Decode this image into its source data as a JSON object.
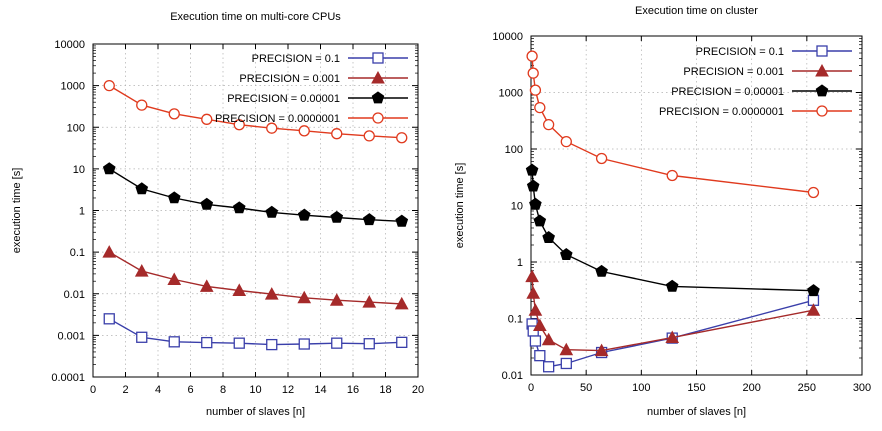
{
  "chart_data": [
    {
      "type": "line",
      "title": "Execution time on multi-core CPUs",
      "xlabel": "number of slaves [n]",
      "ylabel": "execution time [s]",
      "xlim": [
        0,
        20
      ],
      "ylim": [
        0.0001,
        10000
      ],
      "yscale": "log",
      "xticks": [
        "0",
        "2",
        "4",
        "6",
        "8",
        "10",
        "12",
        "14",
        "16",
        "18",
        "20"
      ],
      "yticks": [
        "0.0001",
        "0.001",
        "0.01",
        "0.1",
        "1",
        "10",
        "100",
        "1000",
        "10000"
      ],
      "grid": true,
      "legend_position": "top-right",
      "series": [
        {
          "name": "PRECISION = 0.1",
          "color": "#3a3faa",
          "marker": "open-square",
          "x": [
            1,
            3,
            5,
            7,
            9,
            11,
            13,
            15,
            17,
            19
          ],
          "y": [
            0.0025,
            0.0009,
            0.0007,
            0.00067,
            0.00065,
            0.0006,
            0.00062,
            0.00065,
            0.00063,
            0.00068
          ]
        },
        {
          "name": "PRECISION = 0.001",
          "color": "#a52a2a",
          "marker": "filled-triangle",
          "x": [
            1,
            3,
            5,
            7,
            9,
            11,
            13,
            15,
            17,
            19
          ],
          "y": [
            0.1,
            0.035,
            0.022,
            0.015,
            0.012,
            0.0098,
            0.008,
            0.007,
            0.0063,
            0.0057
          ]
        },
        {
          "name": "PRECISION = 0.00001",
          "color": "#000000",
          "marker": "filled-pentagon",
          "x": [
            1,
            3,
            5,
            7,
            9,
            11,
            13,
            15,
            17,
            19
          ],
          "y": [
            10,
            3.3,
            2.0,
            1.4,
            1.15,
            0.9,
            0.77,
            0.68,
            0.6,
            0.55
          ]
        },
        {
          "name": "PRECISION = 0.0000001",
          "color": "#e03a1e",
          "marker": "open-circle",
          "x": [
            1,
            3,
            5,
            7,
            9,
            11,
            13,
            15,
            17,
            19
          ],
          "y": [
            1000,
            340,
            210,
            155,
            115,
            95,
            82,
            70,
            62,
            56
          ]
        }
      ]
    },
    {
      "type": "line",
      "title": "Execution time on cluster",
      "xlabel": "number of slaves [n]",
      "ylabel": "execution time [s]",
      "xlim": [
        0,
        300
      ],
      "ylim": [
        0.01,
        10000
      ],
      "yscale": "log",
      "xticks": [
        "0",
        "50",
        "100",
        "150",
        "200",
        "250",
        "300"
      ],
      "yticks": [
        "0.01",
        "0.1",
        "1",
        "10",
        "100",
        "1000",
        "10000"
      ],
      "grid": true,
      "legend_position": "top-right",
      "series": [
        {
          "name": "PRECISION = 0.1",
          "color": "#3a3faa",
          "marker": "open-square",
          "x": [
            1,
            2,
            4,
            8,
            16,
            32,
            64,
            128,
            256
          ],
          "y": [
            0.08,
            0.06,
            0.04,
            0.022,
            0.014,
            0.016,
            0.025,
            0.045,
            0.21
          ]
        },
        {
          "name": "PRECISION = 0.001",
          "color": "#a52a2a",
          "marker": "filled-triangle",
          "x": [
            1,
            2,
            4,
            8,
            16,
            32,
            64,
            128,
            256
          ],
          "y": [
            0.55,
            0.28,
            0.14,
            0.075,
            0.042,
            0.028,
            0.027,
            0.046,
            0.14
          ]
        },
        {
          "name": "PRECISION = 0.00001",
          "color": "#000000",
          "marker": "filled-pentagon",
          "x": [
            1,
            2,
            4,
            8,
            16,
            32,
            64,
            128,
            256
          ],
          "y": [
            42,
            22,
            10.5,
            5.3,
            2.7,
            1.35,
            0.68,
            0.37,
            0.31
          ]
        },
        {
          "name": "PRECISION = 0.0000001",
          "color": "#e03a1e",
          "marker": "open-circle",
          "x": [
            1,
            2,
            4,
            8,
            16,
            32,
            64,
            128,
            256
          ],
          "y": [
            4400,
            2200,
            1100,
            540,
            270,
            135,
            68,
            34,
            17
          ]
        }
      ]
    }
  ]
}
